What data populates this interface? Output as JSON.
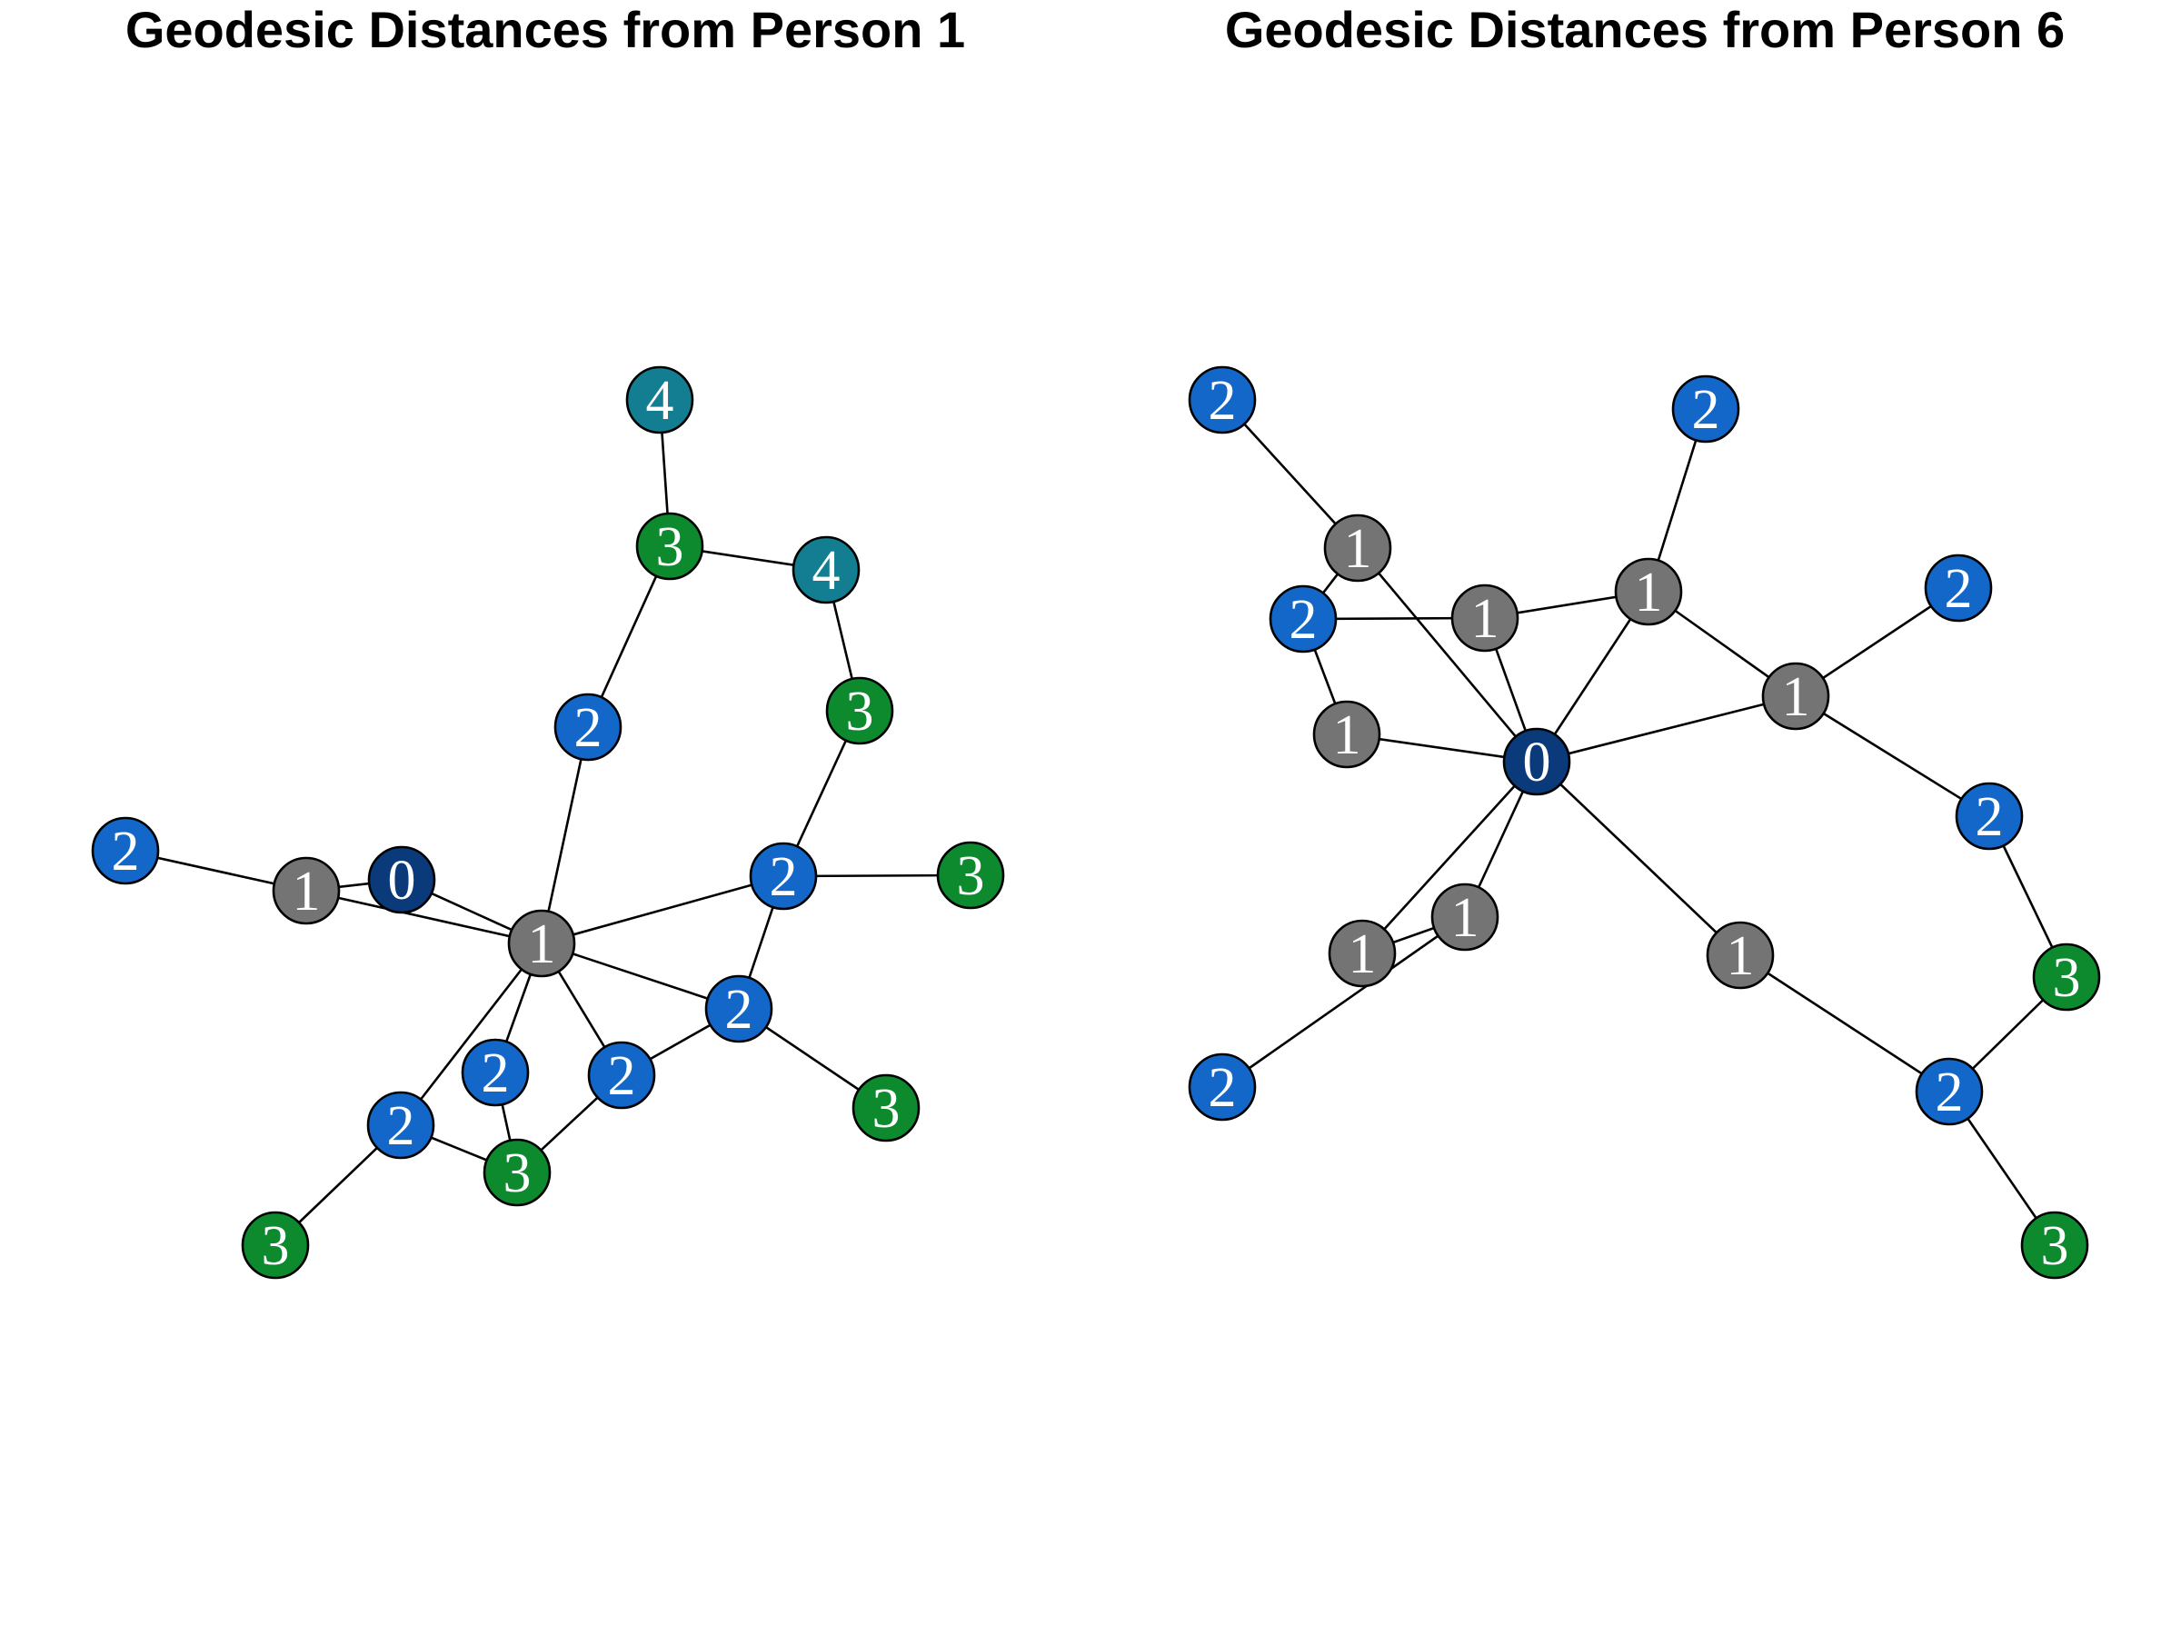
{
  "colors": {
    "0": "#0a3a7a",
    "1": "#747474",
    "2": "#1367c8",
    "3": "#0d8a2e",
    "4": "#137e92"
  },
  "panels": [
    {
      "title": "Geodesic Distances from Person 1",
      "nodes": [
        {
          "id": "a",
          "distance": "4"
        },
        {
          "id": "b",
          "distance": "3"
        },
        {
          "id": "c",
          "distance": "4"
        },
        {
          "id": "d",
          "distance": "3"
        },
        {
          "id": "e",
          "distance": "2"
        },
        {
          "id": "f",
          "distance": "2"
        },
        {
          "id": "g",
          "distance": "1"
        },
        {
          "id": "h",
          "distance": "0"
        },
        {
          "id": "i",
          "distance": "1"
        },
        {
          "id": "j",
          "distance": "2"
        },
        {
          "id": "k",
          "distance": "3"
        },
        {
          "id": "l",
          "distance": "2"
        },
        {
          "id": "m",
          "distance": "2"
        },
        {
          "id": "n",
          "distance": "2"
        },
        {
          "id": "o",
          "distance": "3"
        },
        {
          "id": "p",
          "distance": "2"
        },
        {
          "id": "q",
          "distance": "3"
        },
        {
          "id": "r",
          "distance": "3"
        }
      ],
      "edges": [
        [
          "a",
          "b"
        ],
        [
          "b",
          "c"
        ],
        [
          "c",
          "d"
        ],
        [
          "b",
          "e"
        ],
        [
          "e",
          "i"
        ],
        [
          "d",
          "j"
        ],
        [
          "f",
          "g"
        ],
        [
          "g",
          "h"
        ],
        [
          "g",
          "i"
        ],
        [
          "h",
          "i"
        ],
        [
          "i",
          "j"
        ],
        [
          "j",
          "k"
        ],
        [
          "j",
          "l"
        ],
        [
          "i",
          "l"
        ],
        [
          "l",
          "o"
        ],
        [
          "i",
          "m"
        ],
        [
          "i",
          "n"
        ],
        [
          "i",
          "p"
        ],
        [
          "l",
          "n"
        ],
        [
          "n",
          "q"
        ],
        [
          "m",
          "q"
        ],
        [
          "p",
          "q"
        ],
        [
          "p",
          "r"
        ]
      ]
    },
    {
      "title": "Geodesic Distances from Person 6",
      "nodes": [
        {
          "id": "A",
          "distance": "2"
        },
        {
          "id": "B",
          "distance": "2"
        },
        {
          "id": "C",
          "distance": "1"
        },
        {
          "id": "D",
          "distance": "2"
        },
        {
          "id": "E",
          "distance": "1"
        },
        {
          "id": "F",
          "distance": "1"
        },
        {
          "id": "G",
          "distance": "2"
        },
        {
          "id": "H",
          "distance": "1"
        },
        {
          "id": "I",
          "distance": "1"
        },
        {
          "id": "J",
          "distance": "0"
        },
        {
          "id": "K",
          "distance": "2"
        },
        {
          "id": "L",
          "distance": "1"
        },
        {
          "id": "M",
          "distance": "1"
        },
        {
          "id": "N",
          "distance": "1"
        },
        {
          "id": "O",
          "distance": "3"
        },
        {
          "id": "P",
          "distance": "2"
        },
        {
          "id": "Q",
          "distance": "2"
        },
        {
          "id": "R",
          "distance": "3"
        }
      ],
      "edges": [
        [
          "A",
          "C"
        ],
        [
          "C",
          "D"
        ],
        [
          "C",
          "J"
        ],
        [
          "D",
          "E"
        ],
        [
          "D",
          "I"
        ],
        [
          "E",
          "F"
        ],
        [
          "E",
          "J"
        ],
        [
          "B",
          "F"
        ],
        [
          "F",
          "J"
        ],
        [
          "F",
          "H"
        ],
        [
          "H",
          "G"
        ],
        [
          "H",
          "J"
        ],
        [
          "H",
          "K"
        ],
        [
          "I",
          "J"
        ],
        [
          "J",
          "M"
        ],
        [
          "J",
          "N"
        ],
        [
          "J",
          "L"
        ],
        [
          "L",
          "M"
        ],
        [
          "L",
          "P"
        ],
        [
          "N",
          "Q"
        ],
        [
          "K",
          "O"
        ],
        [
          "O",
          "Q"
        ],
        [
          "Q",
          "R"
        ]
      ]
    }
  ]
}
